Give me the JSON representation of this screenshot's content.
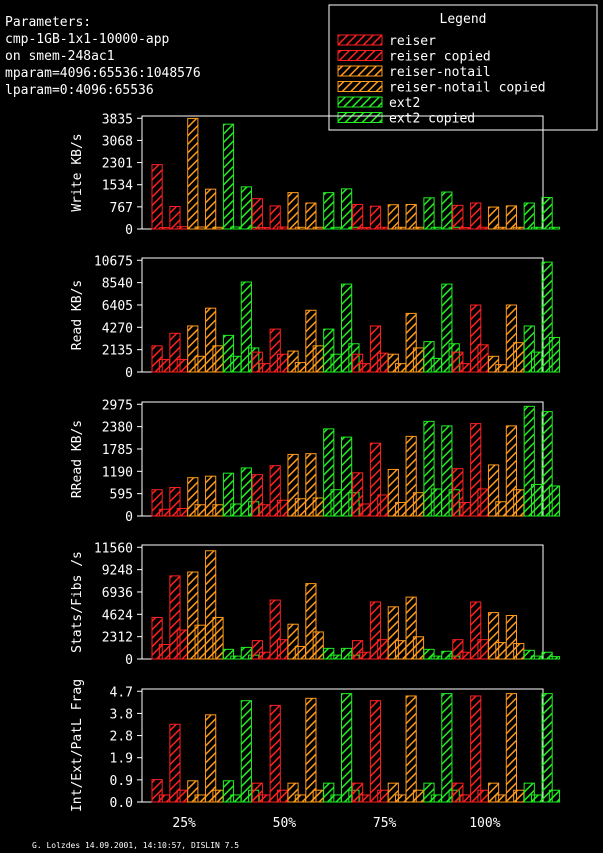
{
  "params": {
    "lines": [
      "Parameters:",
      "cmp-1GB-1x1-10000-app",
      "on smem-248ac1",
      "mparam=4096:65536:1048576",
      "lparam=0:4096:65536"
    ]
  },
  "legend": {
    "title": "Legend",
    "entries": [
      {
        "label": "reiser",
        "color": "#ff2020"
      },
      {
        "label": "reiser copied",
        "color": "#ff2020"
      },
      {
        "label": "reiser-notail",
        "color": "#ff9a1a"
      },
      {
        "label": "reiser-notail copied",
        "color": "#ff9a1a"
      },
      {
        "label": "ext2",
        "color": "#22ee22"
      },
      {
        "label": "ext2 copied",
        "color": "#22ee22"
      }
    ]
  },
  "footer": "G. Lolzdes 14.09.2001, 14:10:57, DISLIN 7.5",
  "chart_data": {
    "type": "bar",
    "categories": [
      "25%",
      "50%",
      "75%",
      "100%"
    ],
    "series_names": [
      "reiser",
      "reiser copied",
      "reiser-notail",
      "reiser-notail copied",
      "ext2",
      "ext2 copied"
    ],
    "panels": [
      {
        "ylabel": "Write KB/s",
        "yticks": [
          "0",
          "767",
          "1534",
          "2301",
          "3068",
          "3835"
        ],
        "ylim": [
          0,
          3835
        ],
        "values": [
          [
            [
              2230,
              50
            ],
            [
              780,
              80
            ],
            [
              3830,
              70
            ],
            [
              1380,
              60
            ],
            [
              3630,
              70
            ],
            [
              1460,
              60
            ]
          ],
          [
            [
              1050,
              50
            ],
            [
              800,
              70
            ],
            [
              1260,
              60
            ],
            [
              900,
              60
            ],
            [
              1260,
              60
            ],
            [
              1390,
              60
            ]
          ],
          [
            [
              850,
              50
            ],
            [
              790,
              60
            ],
            [
              840,
              60
            ],
            [
              850,
              60
            ],
            [
              1080,
              60
            ],
            [
              1280,
              60
            ]
          ],
          [
            [
              820,
              50
            ],
            [
              900,
              60
            ],
            [
              760,
              60
            ],
            [
              800,
              60
            ],
            [
              900,
              60
            ],
            [
              1090,
              60
            ]
          ]
        ]
      },
      {
        "ylabel": "Read KB/s",
        "yticks": [
          "0",
          "2135",
          "4270",
          "6405",
          "8540",
          "10675"
        ],
        "ylim": [
          0,
          10675
        ],
        "values": [
          [
            [
              2500,
              1200
            ],
            [
              3700,
              1200
            ],
            [
              4400,
              1500
            ],
            [
              6100,
              2500
            ],
            [
              3500,
              1500
            ],
            [
              8600,
              2300
            ]
          ],
          [
            [
              1900,
              800
            ],
            [
              4100,
              1700
            ],
            [
              2000,
              900
            ],
            [
              5900,
              2500
            ],
            [
              4100,
              1700
            ],
            [
              8400,
              2700
            ]
          ],
          [
            [
              1700,
              800
            ],
            [
              4400,
              1800
            ],
            [
              1700,
              800
            ],
            [
              5600,
              2300
            ],
            [
              2900,
              1300
            ],
            [
              8400,
              2700
            ]
          ],
          [
            [
              1900,
              800
            ],
            [
              6400,
              2600
            ],
            [
              1500,
              700
            ],
            [
              6400,
              2800
            ],
            [
              4400,
              1900
            ],
            [
              10500,
              3300
            ]
          ]
        ]
      },
      {
        "ylabel": "RRead KB/s",
        "yticks": [
          "0",
          "595",
          "1190",
          "1785",
          "2380",
          "2975"
        ],
        "ylim": [
          0,
          2975
        ],
        "values": [
          [
            [
              700,
              180
            ],
            [
              760,
              200
            ],
            [
              1020,
              300
            ],
            [
              1060,
              300
            ],
            [
              1140,
              320
            ],
            [
              1280,
              380
            ]
          ],
          [
            [
              1100,
              300
            ],
            [
              1340,
              420
            ],
            [
              1640,
              460
            ],
            [
              1660,
              480
            ],
            [
              2320,
              700
            ],
            [
              2100,
              620
            ]
          ],
          [
            [
              1150,
              320
            ],
            [
              1940,
              560
            ],
            [
              1240,
              360
            ],
            [
              2120,
              620
            ],
            [
              2520,
              720
            ],
            [
              2400,
              700
            ]
          ],
          [
            [
              1260,
              360
            ],
            [
              2460,
              720
            ],
            [
              1360,
              380
            ],
            [
              2400,
              700
            ],
            [
              2920,
              840
            ],
            [
              2780,
              800
            ]
          ]
        ]
      },
      {
        "ylabel": "Stats/Fibs /s",
        "yticks": [
          "0",
          "2312",
          "4624",
          "6936",
          "9248",
          "11560"
        ],
        "ylim": [
          0,
          11560
        ],
        "values": [
          [
            [
              4300,
              1500
            ],
            [
              8600,
              3000
            ],
            [
              9000,
              3500
            ],
            [
              11200,
              4300
            ],
            [
              1000,
              300
            ],
            [
              1200,
              400
            ]
          ],
          [
            [
              1900,
              700
            ],
            [
              6100,
              2000
            ],
            [
              3600,
              1300
            ],
            [
              7800,
              2800
            ],
            [
              1100,
              400
            ],
            [
              1100,
              400
            ]
          ],
          [
            [
              1900,
              700
            ],
            [
              5900,
              2000
            ],
            [
              5400,
              1900
            ],
            [
              6400,
              2300
            ],
            [
              1000,
              300
            ],
            [
              800,
              300
            ]
          ],
          [
            [
              2000,
              700
            ],
            [
              5900,
              2000
            ],
            [
              4800,
              1700
            ],
            [
              4500,
              1600
            ],
            [
              900,
              300
            ],
            [
              700,
              250
            ]
          ]
        ]
      },
      {
        "ylabel": "Int/Ext/PatL Frag",
        "yticks": [
          "0.0",
          "0.9",
          "1.9",
          "2.8",
          "3.8",
          "4.7"
        ],
        "ylim": [
          0,
          4.7
        ],
        "values": [
          [
            [
              0.95,
              0.3
            ],
            [
              3.3,
              0.5
            ],
            [
              0.9,
              0.3
            ],
            [
              3.7,
              0.5
            ],
            [
              0.9,
              0.3
            ],
            [
              4.3,
              0.5
            ]
          ],
          [
            [
              0.8,
              0.3
            ],
            [
              4.1,
              0.5
            ],
            [
              0.8,
              0.3
            ],
            [
              4.4,
              0.5
            ],
            [
              0.8,
              0.3
            ],
            [
              4.6,
              0.5
            ]
          ],
          [
            [
              0.8,
              0.3
            ],
            [
              4.3,
              0.5
            ],
            [
              0.8,
              0.3
            ],
            [
              4.5,
              0.5
            ],
            [
              0.8,
              0.3
            ],
            [
              4.6,
              0.5
            ]
          ],
          [
            [
              0.8,
              0.3
            ],
            [
              4.5,
              0.5
            ],
            [
              0.8,
              0.3
            ],
            [
              4.6,
              0.5
            ],
            [
              0.8,
              0.3
            ],
            [
              4.6,
              0.5
            ]
          ]
        ]
      }
    ]
  }
}
